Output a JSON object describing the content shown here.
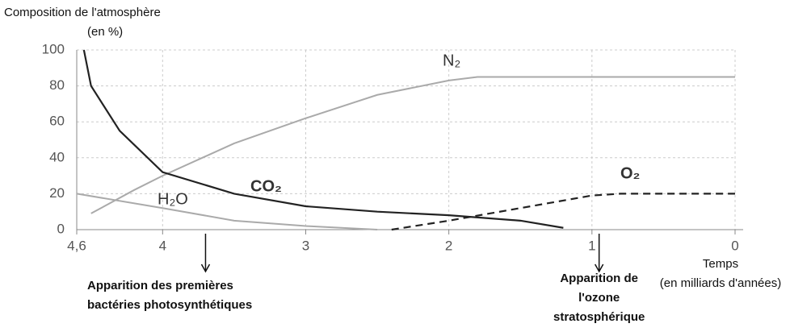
{
  "chart_data": {
    "type": "line",
    "y_label": [
      "Composition de l'atmosphère",
      "(en %)"
    ],
    "x_label": [
      "Temps",
      "(en milliards d'années)"
    ],
    "xlim": [
      4.6,
      0
    ],
    "ylim": [
      0,
      100
    ],
    "xticks": [
      {
        "value": 4.6,
        "label": "4,6"
      },
      4,
      3,
      2,
      1,
      0
    ],
    "yticks": [
      0,
      20,
      40,
      60,
      80,
      100
    ],
    "grid": true,
    "series": [
      {
        "name": "N₂",
        "color": "#aaaaaa",
        "dash": false,
        "x": [
          4.5,
          4.2,
          4,
          3.5,
          3,
          2.5,
          2,
          1.8,
          1,
          0
        ],
        "values": [
          9,
          22,
          30,
          48,
          62,
          75,
          83,
          85,
          85,
          85
        ]
      },
      {
        "name": "CO₂",
        "color": "#222222",
        "dash": false,
        "x": [
          4.55,
          4.5,
          4.3,
          4,
          3.5,
          3,
          2.5,
          2,
          1.5,
          1.2
        ],
        "values": [
          100,
          80,
          55,
          32,
          20,
          13,
          10,
          8,
          5,
          1
        ]
      },
      {
        "name": "H₂O",
        "color": "#aaaaaa",
        "dash": false,
        "x": [
          4.6,
          4,
          3.5,
          3,
          2.5
        ],
        "values": [
          20,
          12,
          5,
          2,
          0
        ]
      },
      {
        "name": "O₂",
        "color": "#222222",
        "dash": true,
        "x": [
          2.4,
          2,
          1.5,
          1,
          0.8,
          0
        ],
        "values": [
          0,
          5,
          12,
          19,
          20,
          20
        ]
      }
    ],
    "annotations": [
      {
        "x": 3.7,
        "lines": [
          "Apparition des premières",
          "bactéries photosynthétiques"
        ]
      },
      {
        "x": 0.95,
        "lines": [
          "Apparition de",
          "l'ozone",
          "stratosphérique"
        ]
      }
    ]
  }
}
